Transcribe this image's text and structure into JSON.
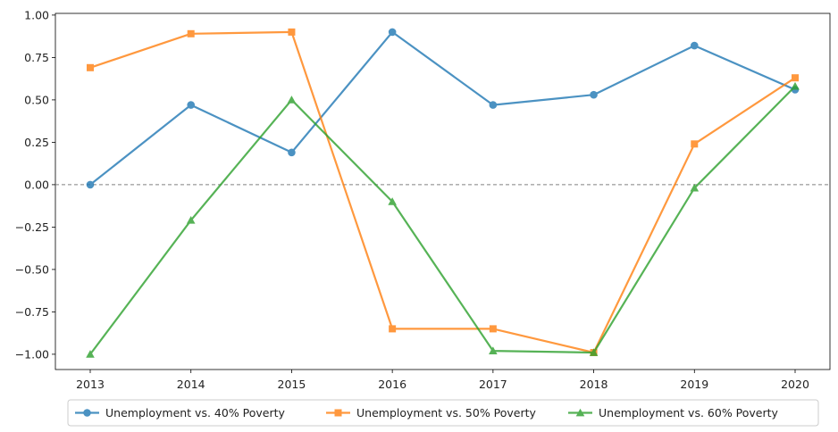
{
  "chart_data": {
    "type": "line",
    "x": [
      "2013",
      "2014",
      "2015",
      "2016",
      "2017",
      "2018",
      "2019",
      "2020"
    ],
    "series": [
      {
        "name": "Unemployment vs. 40% Poverty",
        "color": "#1f77b4",
        "marker": "circle",
        "values": [
          0.0,
          0.47,
          0.19,
          0.9,
          0.47,
          0.53,
          0.82,
          0.56
        ]
      },
      {
        "name": "Unemployment vs. 50% Poverty",
        "color": "#ff7f0e",
        "marker": "square",
        "values": [
          0.69,
          0.89,
          0.9,
          -0.85,
          -0.85,
          -0.99,
          0.24,
          0.63
        ]
      },
      {
        "name": "Unemployment vs. 60% Poverty",
        "color": "#2ca02c",
        "marker": "triangle",
        "values": [
          -1.0,
          -0.21,
          0.5,
          -0.1,
          -0.98,
          -0.99,
          -0.02,
          0.58
        ]
      }
    ],
    "yticks": [
      "1.00",
      "0.75",
      "0.50",
      "0.25",
      "0.00",
      "−0.25",
      "−0.50",
      "−0.75",
      "−1.00"
    ],
    "ytick_values": [
      1.0,
      0.75,
      0.5,
      0.25,
      0.0,
      -0.25,
      -0.5,
      -0.75,
      -1.0
    ],
    "ylim": [
      -1.09,
      1.01
    ],
    "reference_line": 0,
    "grid": false,
    "legend_position": "bottom-center",
    "title": "",
    "xlabel": "",
    "ylabel": ""
  }
}
